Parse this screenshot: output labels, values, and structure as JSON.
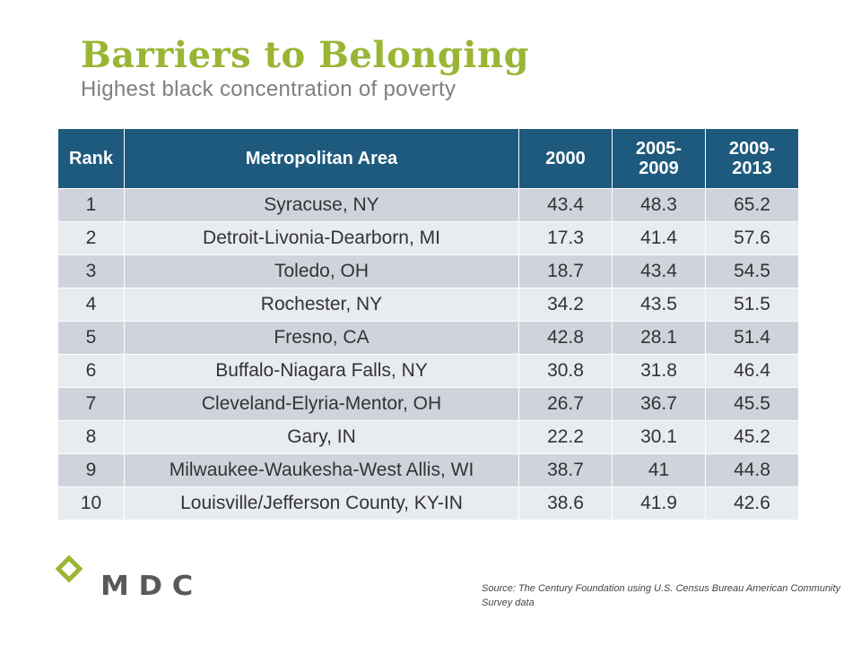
{
  "header": {
    "title": "Barriers to Belonging",
    "subtitle": "Highest black concentration of poverty"
  },
  "colors": {
    "title": "#9ab534",
    "header_bg": "#1e5a7d",
    "row_odd": "#cfd4dc",
    "row_even": "#e8ebef",
    "logo_green": "#9ab534",
    "logo_gray": "#595959"
  },
  "table": {
    "columns": [
      "Rank",
      "Metropolitan Area",
      "2000",
      "2005-2009",
      "2009-2013"
    ],
    "rows": [
      [
        "1",
        "Syracuse, NY",
        "43.4",
        "48.3",
        "65.2"
      ],
      [
        "2",
        "Detroit-Livonia-Dearborn, MI",
        "17.3",
        "41.4",
        "57.6"
      ],
      [
        "3",
        "Toledo, OH",
        "18.7",
        "43.4",
        "54.5"
      ],
      [
        "4",
        "Rochester, NY",
        "34.2",
        "43.5",
        "51.5"
      ],
      [
        "5",
        "Fresno, CA",
        "42.8",
        "28.1",
        "51.4"
      ],
      [
        "6",
        "Buffalo-Niagara Falls, NY",
        "30.8",
        "31.8",
        "46.4"
      ],
      [
        "7",
        "Cleveland-Elyria-Mentor, OH",
        "26.7",
        "36.7",
        "45.5"
      ],
      [
        "8",
        "Gary, IN",
        "22.2",
        "30.1",
        "45.2"
      ],
      [
        "9",
        "Milwaukee-Waukesha-West Allis, WI",
        "38.7",
        "41",
        "44.8"
      ],
      [
        "10",
        "Louisville/Jefferson County, KY-IN",
        "38.6",
        "41.9",
        "42.6"
      ]
    ]
  },
  "logo": {
    "text": "MDC"
  },
  "footer": {
    "source": "Source: The Century Foundation using U.S. Census Bureau American Community Survey data"
  }
}
